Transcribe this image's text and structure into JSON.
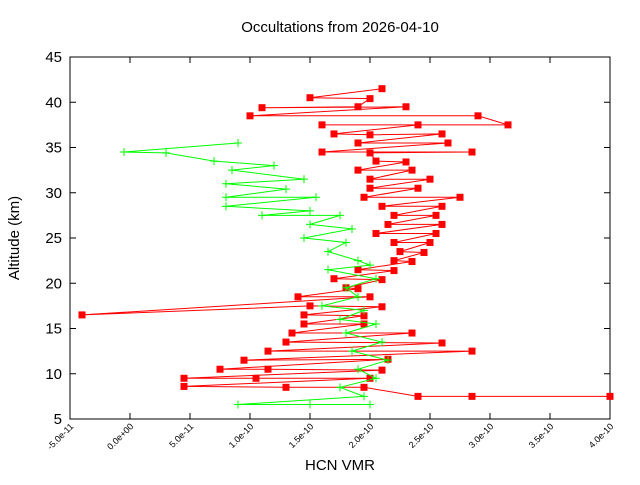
{
  "chart_data": {
    "type": "line",
    "title": "Occultations from 2026-04-10",
    "xlabel": "HCN VMR",
    "ylabel": "Altitude (km)",
    "xlim": [
      -5e-11,
      4e-10
    ],
    "ylim": [
      5,
      45
    ],
    "xticks": [
      "-5.0e-11",
      "0.0e+00",
      "5.0e-11",
      "1.0e-10",
      "1.5e-10",
      "2.0e-10",
      "2.5e-10",
      "3.0e-10",
      "3.5e-10",
      "4.0e-10"
    ],
    "yticks": [
      "5",
      "10",
      "15",
      "20",
      "25",
      "30",
      "35",
      "40",
      "45"
    ],
    "grid": false,
    "series": [
      {
        "color": "#ff0000",
        "marker": "square",
        "x": [
          2.1e-10,
          1.5e-10,
          2e-10,
          1.9e-10,
          1.1e-10,
          2.3e-10,
          1e-10,
          2.9e-10,
          3.15e-10,
          1.6e-10,
          2.4e-10,
          1.7e-10,
          2e-10,
          2.6e-10,
          1.9e-10,
          2.65e-10,
          1.6e-10,
          2.85e-10,
          2e-10,
          2.05e-10,
          2.3e-10,
          1.9e-10,
          2.35e-10,
          2e-10,
          2.5e-10,
          2e-10,
          2.4e-10,
          1.95e-10,
          2.75e-10,
          2.1e-10,
          2.6e-10,
          2.2e-10,
          2.55e-10,
          2.15e-10,
          2.6e-10,
          2.05e-10,
          2.55e-10,
          2.2e-10,
          2.5e-10,
          2.25e-10,
          2.45e-10,
          2.2e-10,
          2.35e-10,
          1.9e-10,
          2.2e-10,
          1.7e-10,
          2.1e-10,
          1.8e-10,
          1.9e-10,
          1.4e-10,
          2e-10,
          -4e-11,
          1.5e-10,
          2.1e-10,
          1.45e-10,
          1.95e-10,
          1.45e-10,
          1.95e-10,
          1.35e-10,
          2.35e-10,
          1.3e-10,
          2.6e-10,
          1.15e-10,
          2.85e-10,
          9.5e-11,
          2.15e-10,
          7.5e-11,
          1.15e-10,
          2.1e-10,
          4.5e-11,
          1.05e-10,
          2e-10,
          4.5e-11,
          1.3e-10,
          1.95e-10,
          2.4e-10,
          4e-10,
          2.85e-10
        ],
        "y": [
          41.5,
          40.5,
          40.4,
          39.5,
          39.4,
          39.5,
          38.5,
          38.5,
          37.5,
          37.5,
          37.5,
          36.5,
          36.4,
          36.5,
          35.5,
          35.5,
          34.5,
          34.5,
          34.4,
          33.5,
          33.4,
          32.5,
          32.5,
          31.5,
          31.5,
          30.5,
          30.5,
          29.5,
          29.5,
          28.5,
          28.5,
          27.5,
          27.5,
          26.5,
          26.5,
          25.5,
          25.5,
          24.5,
          24.5,
          23.5,
          23.4,
          22.5,
          22.4,
          21.5,
          21.4,
          20.5,
          20.4,
          19.5,
          19.4,
          18.5,
          18.5,
          16.5,
          17.5,
          17.4,
          16.5,
          16.4,
          15.5,
          15.5,
          14.5,
          14.5,
          13.5,
          13.4,
          12.5,
          12.5,
          11.5,
          11.6,
          10.5,
          10.5,
          10.4,
          9.5,
          9.5,
          9.5,
          8.6,
          8.5,
          8.5,
          7.5,
          7.5,
          7.5
        ]
      },
      {
        "color": "#00ff00",
        "marker": "plus",
        "x": [
          9e-11,
          -5e-12,
          3e-11,
          7e-11,
          1.2e-10,
          8.5e-11,
          1.45e-10,
          8e-11,
          1.3e-10,
          8e-11,
          1.55e-10,
          8e-11,
          1.5e-10,
          1.1e-10,
          1.75e-10,
          1.5e-10,
          1.85e-10,
          1.45e-10,
          1.8e-10,
          1.65e-10,
          1.9e-10,
          2e-10,
          1.65e-10,
          2.05e-10,
          1.8e-10,
          1.9e-10,
          1.6e-10,
          1.95e-10,
          1.75e-10,
          2.05e-10,
          1.8e-10,
          2.1e-10,
          1.85e-10,
          2.15e-10,
          1.9e-10,
          2.05e-10,
          1.75e-10,
          1.95e-10,
          9e-11,
          1.5e-10,
          2e-10
        ],
        "y": [
          35.5,
          34.5,
          34.4,
          33.5,
          33.0,
          32.5,
          31.5,
          31.0,
          30.4,
          29.5,
          29.5,
          28.5,
          28.0,
          27.5,
          27.5,
          26.5,
          26.0,
          25.0,
          24.5,
          23.5,
          22.5,
          22.0,
          21.5,
          20.5,
          19.5,
          18.5,
          17.5,
          17.0,
          16.0,
          15.5,
          14.5,
          13.5,
          12.5,
          11.5,
          10.5,
          9.5,
          8.5,
          7.5,
          6.6,
          6.6,
          6.6
        ]
      }
    ]
  }
}
